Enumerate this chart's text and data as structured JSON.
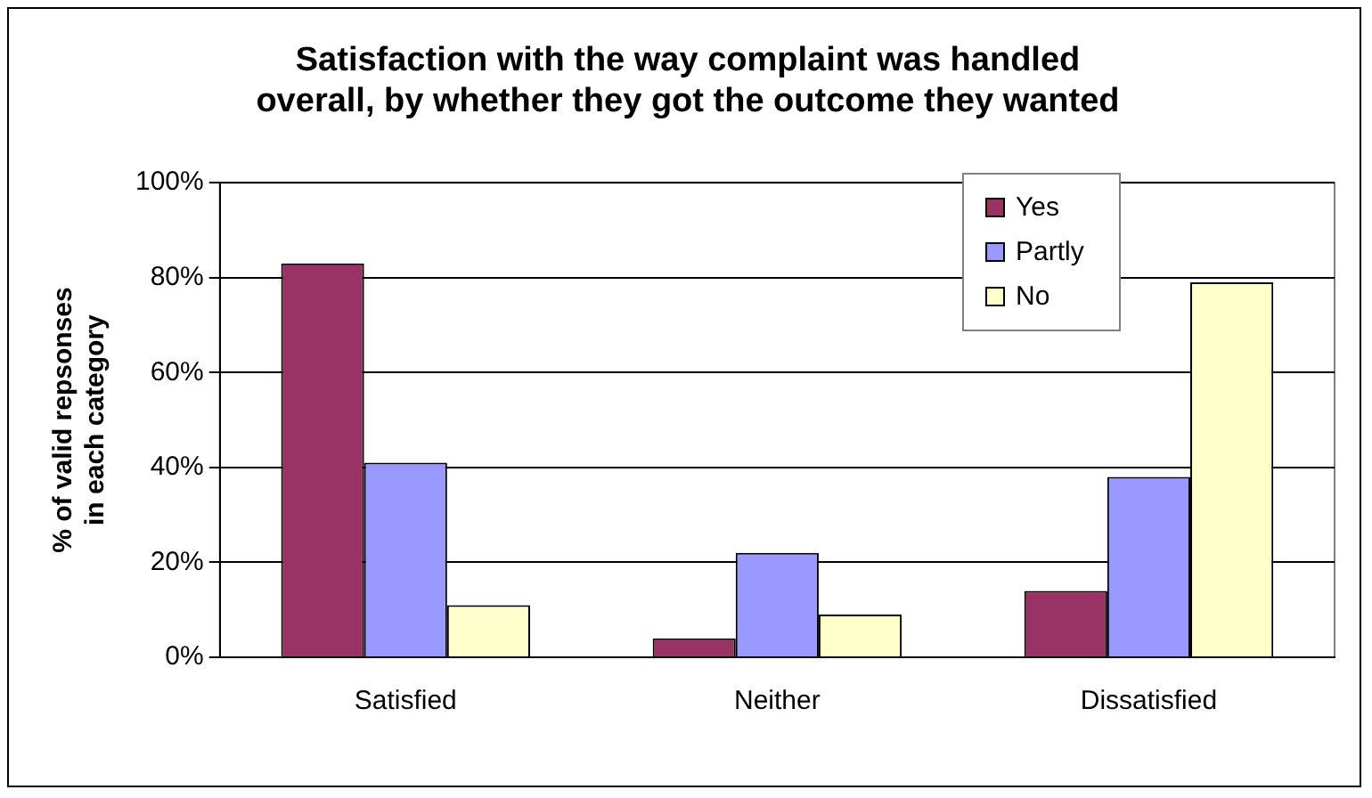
{
  "chart_data": {
    "type": "bar",
    "title": [
      "Satisfaction with the way complaint was handled",
      "overall, by whether they got the outcome they wanted"
    ],
    "ylabel": [
      "% of valid repsonses",
      "in each category"
    ],
    "categories": [
      "Satisfied",
      "Neither",
      "Dissatisfied"
    ],
    "series": [
      {
        "name": "Yes",
        "color": "#993366",
        "values": [
          83,
          4,
          14
        ]
      },
      {
        "name": "Partly",
        "color": "#9999ff",
        "values": [
          41,
          22,
          38
        ]
      },
      {
        "name": "No",
        "color": "#ffffcc",
        "values": [
          11,
          9,
          79
        ]
      }
    ],
    "ylim": [
      0,
      100
    ],
    "yticks": [
      {
        "value": 0,
        "label": "0%"
      },
      {
        "value": 20,
        "label": "20%"
      },
      {
        "value": 40,
        "label": "40%"
      },
      {
        "value": 60,
        "label": "60%"
      },
      {
        "value": 80,
        "label": "80%"
      },
      {
        "value": 100,
        "label": "100%"
      }
    ],
    "grid": "y",
    "legend": "top right"
  }
}
